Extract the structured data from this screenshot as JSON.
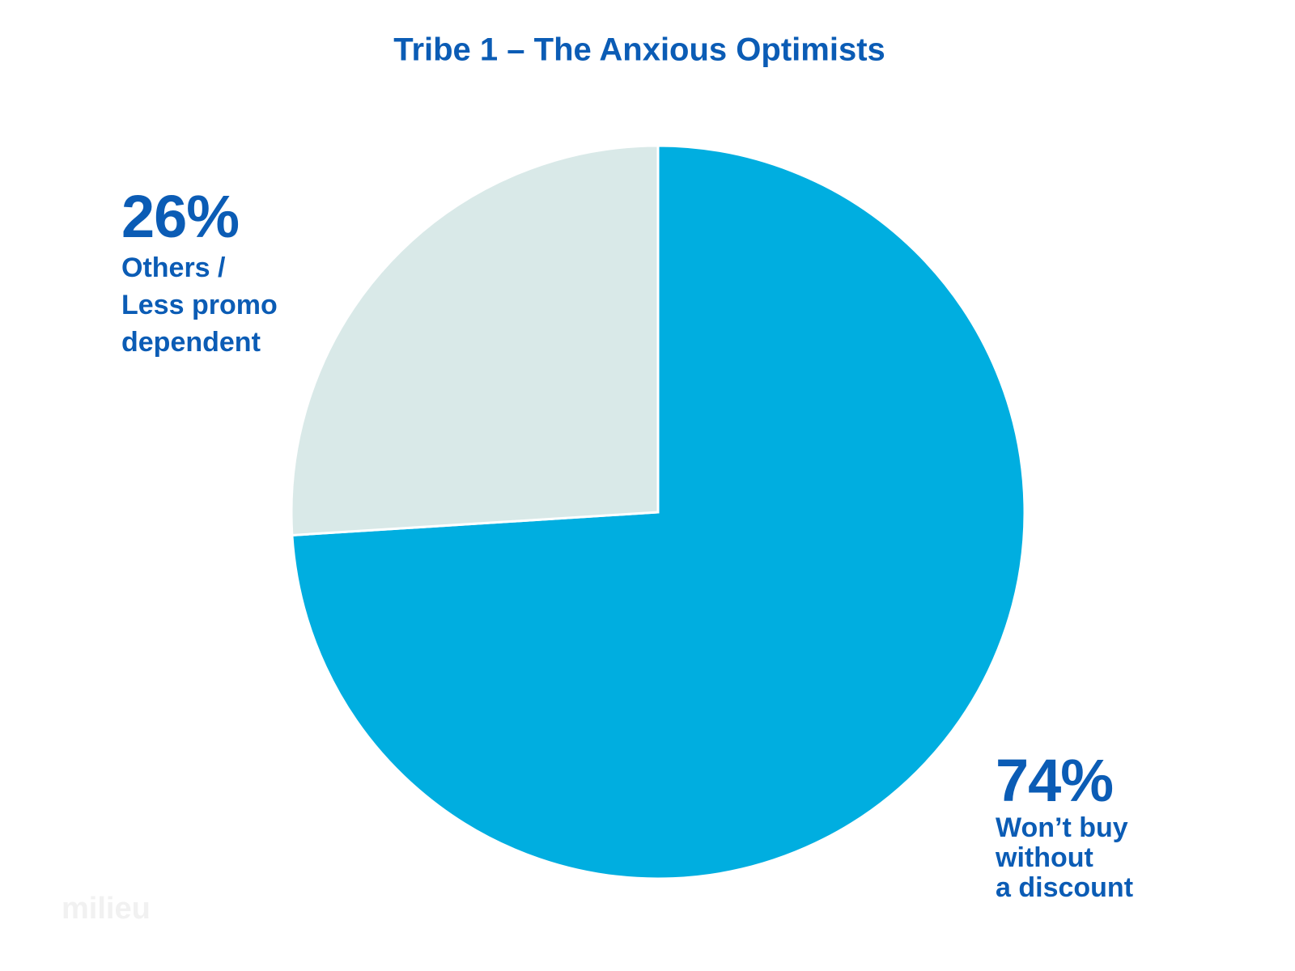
{
  "chart_data": {
    "type": "pie",
    "title": "Tribe 1 – The Anxious Optimists",
    "categories": [
      "Won’t buy\nwithout\na discount",
      "Others /\nLess promo\ndependent"
    ],
    "values": [
      74,
      26
    ],
    "value_labels": [
      "74%",
      "26%"
    ],
    "colors": [
      "#00aee0",
      "#d9e9e8"
    ]
  },
  "watermark": "milieu"
}
